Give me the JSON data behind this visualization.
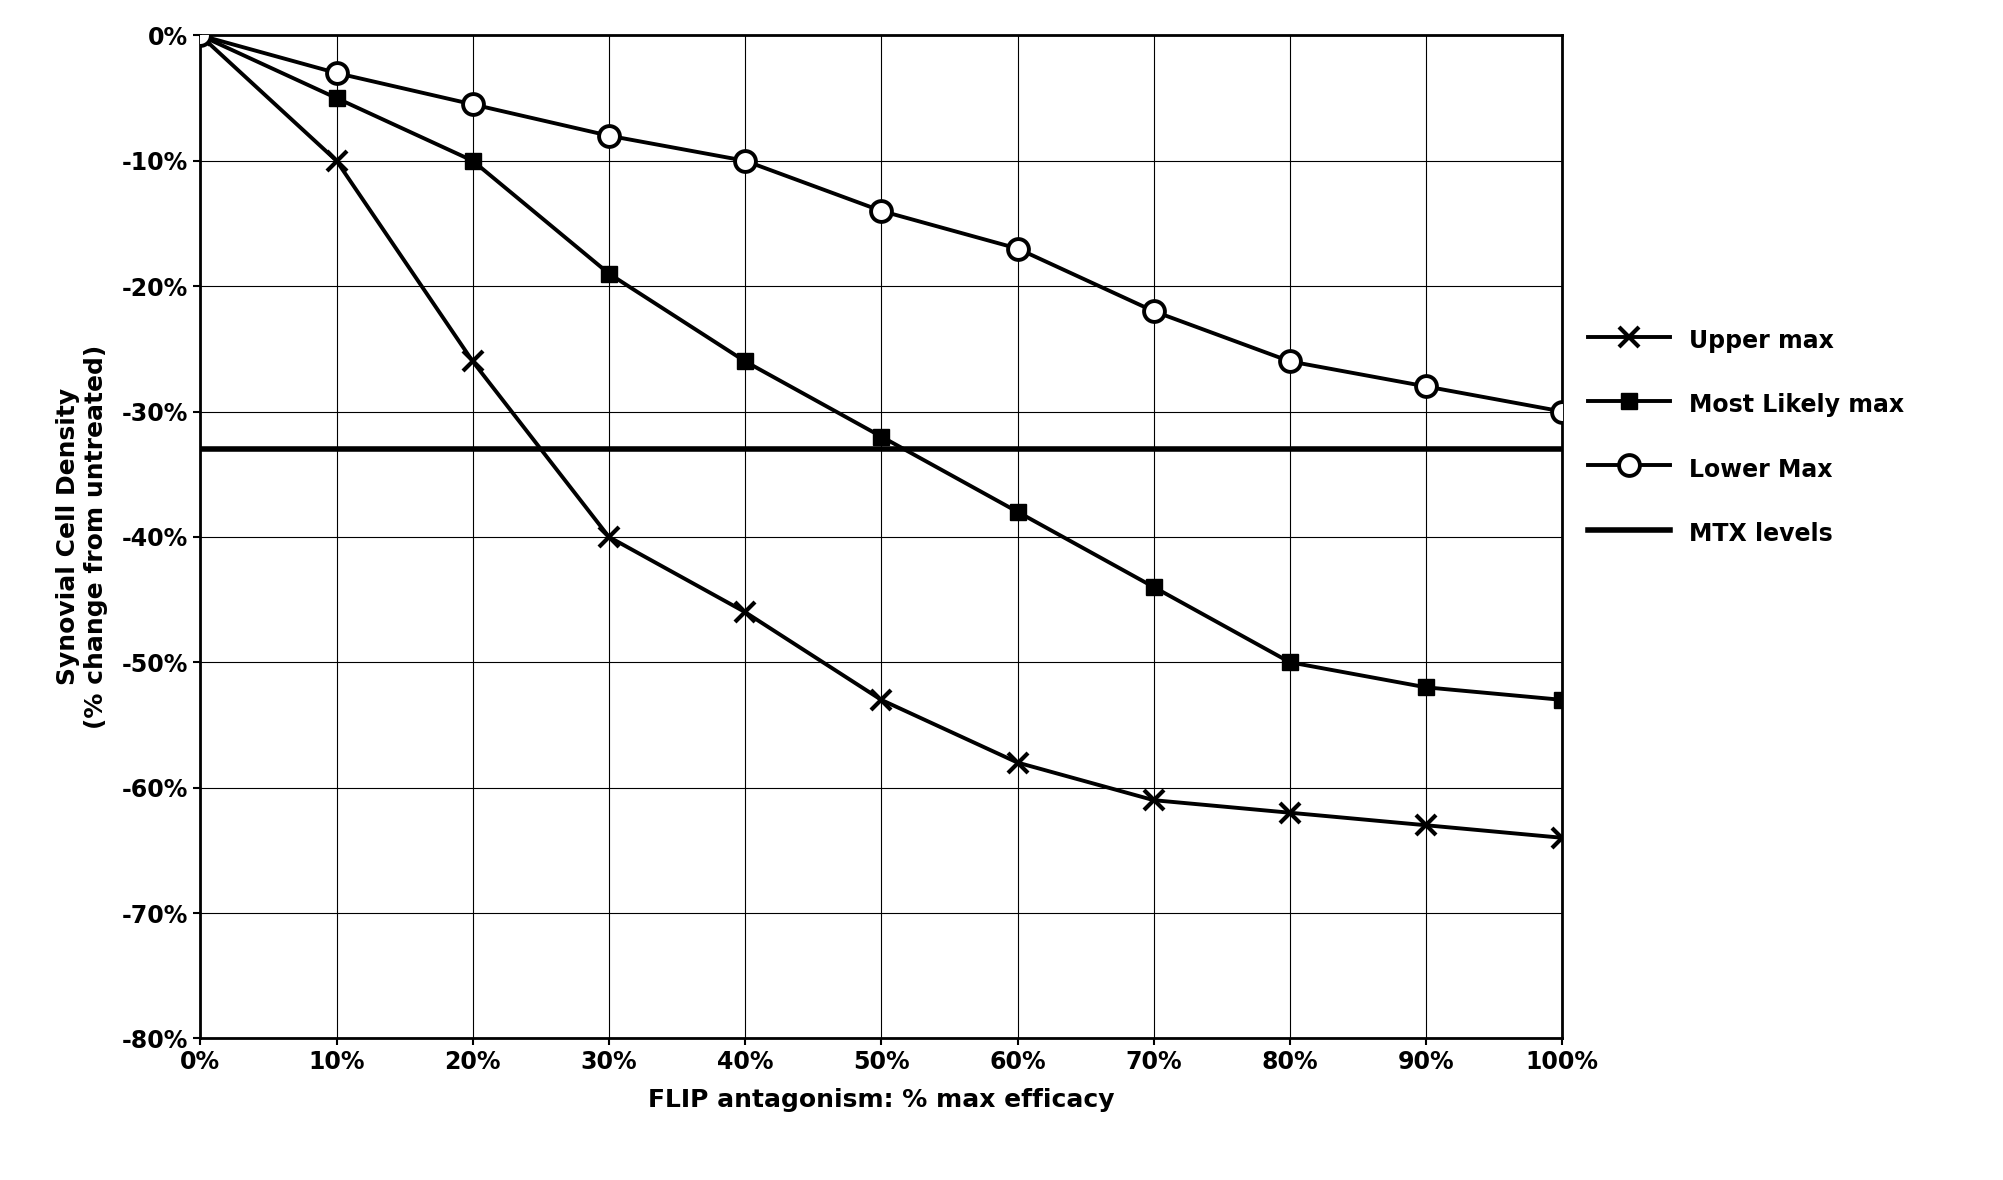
{
  "x": [
    0,
    10,
    20,
    30,
    40,
    50,
    60,
    70,
    80,
    90,
    100
  ],
  "upper_max": [
    0,
    -10,
    -26,
    -40,
    -46,
    -53,
    -58,
    -61,
    -62,
    -63,
    -64
  ],
  "most_likely_max": [
    0,
    -5,
    -10,
    -19,
    -26,
    -32,
    -38,
    -44,
    -50,
    -52,
    -53
  ],
  "lower_max": [
    0,
    -3,
    -5.5,
    -8,
    -10,
    -14,
    -17,
    -22,
    -26,
    -28,
    -30
  ],
  "mtx_level": -33,
  "xlabel": "FLIP antagonism: % max efficacy",
  "ylabel": "Synovial Cell Density\n(% change from untreated)",
  "legend_upper_max": "Upper max",
  "legend_most_likely": "Most Likely max",
  "legend_lower_max": "Lower Max",
  "legend_mtx": "MTX levels",
  "ylim_min": -80,
  "ylim_max": 0,
  "xlim_min": 0,
  "xlim_max": 100,
  "background_color": "#ffffff",
  "line_color": "#000000",
  "grid_color": "#555555",
  "label_fontsize": 18,
  "tick_fontsize": 17,
  "legend_fontsize": 17
}
